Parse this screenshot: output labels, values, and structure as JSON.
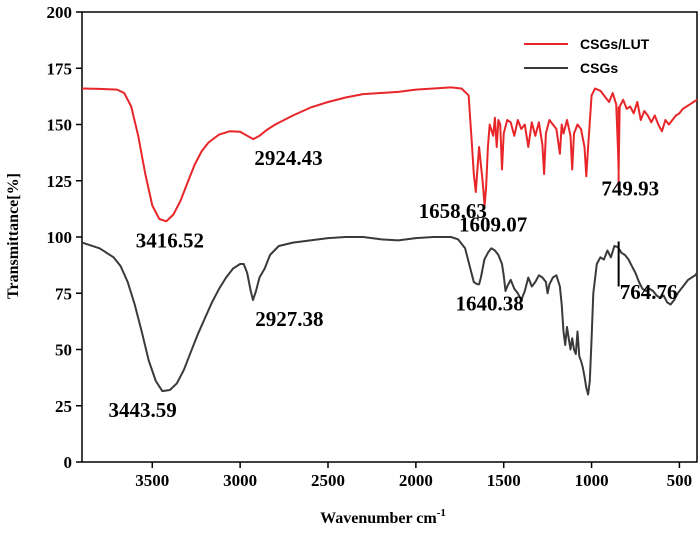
{
  "chart_data": {
    "type": "line",
    "xlabel": "Wavenumber cm",
    "xlabel_sup": "-1",
    "ylabel": "Transmittance[%]",
    "xlim": [
      3900,
      400
    ],
    "ylim": [
      0,
      200
    ],
    "x_ticks": [
      3500,
      3000,
      2500,
      2000,
      1500,
      1000,
      500
    ],
    "y_ticks": [
      0,
      25,
      50,
      75,
      100,
      125,
      150,
      175,
      200
    ],
    "legend_position": "top-right",
    "series": [
      {
        "name": "CSGs/LUT",
        "color": "#e8262a",
        "points": [
          [
            3900,
            166
          ],
          [
            3800,
            165.8
          ],
          [
            3700,
            165.5
          ],
          [
            3660,
            164
          ],
          [
            3620,
            158
          ],
          [
            3580,
            145
          ],
          [
            3540,
            128
          ],
          [
            3500,
            114
          ],
          [
            3460,
            108
          ],
          [
            3420,
            107
          ],
          [
            3380,
            110
          ],
          [
            3340,
            116
          ],
          [
            3300,
            124
          ],
          [
            3260,
            132
          ],
          [
            3220,
            138
          ],
          [
            3180,
            142
          ],
          [
            3120,
            145.5
          ],
          [
            3060,
            147
          ],
          [
            3000,
            146.8
          ],
          [
            2960,
            145
          ],
          [
            2925,
            143.5
          ],
          [
            2890,
            145
          ],
          [
            2850,
            147.5
          ],
          [
            2800,
            150
          ],
          [
            2700,
            154
          ],
          [
            2600,
            157.5
          ],
          [
            2500,
            160
          ],
          [
            2400,
            162
          ],
          [
            2300,
            163.5
          ],
          [
            2200,
            164
          ],
          [
            2100,
            164.5
          ],
          [
            2000,
            165.5
          ],
          [
            1900,
            166
          ],
          [
            1800,
            166.5
          ],
          [
            1740,
            166
          ],
          [
            1700,
            163
          ],
          [
            1680,
            140
          ],
          [
            1670,
            128
          ],
          [
            1659,
            120
          ],
          [
            1650,
            130
          ],
          [
            1640,
            140
          ],
          [
            1630,
            132
          ],
          [
            1620,
            125
          ],
          [
            1609,
            114
          ],
          [
            1600,
            122
          ],
          [
            1590,
            140
          ],
          [
            1580,
            150
          ],
          [
            1560,
            145
          ],
          [
            1550,
            153
          ],
          [
            1540,
            140
          ],
          [
            1530,
            152
          ],
          [
            1520,
            150
          ],
          [
            1510,
            130
          ],
          [
            1500,
            146
          ],
          [
            1480,
            152
          ],
          [
            1460,
            151
          ],
          [
            1440,
            145
          ],
          [
            1420,
            152
          ],
          [
            1400,
            148
          ],
          [
            1380,
            150
          ],
          [
            1360,
            140
          ],
          [
            1340,
            151
          ],
          [
            1320,
            145
          ],
          [
            1300,
            151
          ],
          [
            1280,
            141
          ],
          [
            1270,
            128
          ],
          [
            1260,
            146
          ],
          [
            1240,
            152
          ],
          [
            1220,
            150
          ],
          [
            1200,
            148
          ],
          [
            1180,
            137
          ],
          [
            1170,
            150
          ],
          [
            1160,
            146
          ],
          [
            1140,
            152
          ],
          [
            1120,
            145
          ],
          [
            1110,
            130
          ],
          [
            1100,
            146
          ],
          [
            1080,
            150
          ],
          [
            1060,
            148
          ],
          [
            1040,
            140
          ],
          [
            1030,
            127
          ],
          [
            1020,
            140
          ],
          [
            1000,
            163
          ],
          [
            980,
            166
          ],
          [
            950,
            165
          ],
          [
            920,
            162
          ],
          [
            900,
            160
          ],
          [
            880,
            164
          ],
          [
            860,
            159
          ],
          [
            850,
            140
          ],
          [
            846,
            130
          ],
          [
            840,
            158
          ],
          [
            820,
            161
          ],
          [
            800,
            157
          ],
          [
            780,
            158
          ],
          [
            760,
            155
          ],
          [
            740,
            160
          ],
          [
            720,
            152
          ],
          [
            700,
            156
          ],
          [
            680,
            154
          ],
          [
            660,
            151
          ],
          [
            640,
            154
          ],
          [
            620,
            150
          ],
          [
            600,
            147
          ],
          [
            580,
            152
          ],
          [
            560,
            150
          ],
          [
            540,
            152
          ],
          [
            520,
            154
          ],
          [
            500,
            155
          ],
          [
            480,
            157
          ],
          [
            460,
            158
          ],
          [
            440,
            159
          ],
          [
            420,
            160
          ],
          [
            400,
            161
          ]
        ]
      },
      {
        "name": "CSGs",
        "color": "#3a3a3a",
        "points": [
          [
            3900,
            97.5
          ],
          [
            3800,
            95
          ],
          [
            3720,
            91
          ],
          [
            3680,
            87
          ],
          [
            3640,
            80
          ],
          [
            3600,
            70
          ],
          [
            3560,
            58
          ],
          [
            3520,
            45
          ],
          [
            3480,
            36
          ],
          [
            3443,
            31.5
          ],
          [
            3400,
            32
          ],
          [
            3360,
            35
          ],
          [
            3320,
            41
          ],
          [
            3280,
            49
          ],
          [
            3240,
            57
          ],
          [
            3200,
            64
          ],
          [
            3160,
            71
          ],
          [
            3120,
            77
          ],
          [
            3080,
            82
          ],
          [
            3040,
            86
          ],
          [
            3000,
            88
          ],
          [
            2980,
            88
          ],
          [
            2960,
            84
          ],
          [
            2940,
            76
          ],
          [
            2927,
            72
          ],
          [
            2910,
            76
          ],
          [
            2890,
            82
          ],
          [
            2860,
            86
          ],
          [
            2830,
            92
          ],
          [
            2780,
            96
          ],
          [
            2700,
            97.5
          ],
          [
            2600,
            98.5
          ],
          [
            2500,
            99.5
          ],
          [
            2400,
            100
          ],
          [
            2300,
            100
          ],
          [
            2200,
            99
          ],
          [
            2100,
            98.5
          ],
          [
            2000,
            99.5
          ],
          [
            1900,
            100
          ],
          [
            1800,
            100
          ],
          [
            1760,
            99
          ],
          [
            1720,
            95
          ],
          [
            1690,
            86
          ],
          [
            1670,
            80
          ],
          [
            1650,
            79
          ],
          [
            1640,
            79
          ],
          [
            1630,
            82
          ],
          [
            1610,
            90
          ],
          [
            1590,
            93
          ],
          [
            1570,
            95
          ],
          [
            1550,
            94
          ],
          [
            1530,
            92
          ],
          [
            1510,
            88
          ],
          [
            1500,
            83
          ],
          [
            1490,
            76
          ],
          [
            1480,
            78
          ],
          [
            1460,
            81
          ],
          [
            1440,
            77
          ],
          [
            1420,
            75
          ],
          [
            1400,
            72
          ],
          [
            1380,
            76
          ],
          [
            1360,
            82
          ],
          [
            1340,
            78
          ],
          [
            1320,
            80
          ],
          [
            1300,
            83
          ],
          [
            1280,
            82
          ],
          [
            1260,
            80
          ],
          [
            1250,
            75
          ],
          [
            1240,
            79
          ],
          [
            1220,
            82
          ],
          [
            1200,
            83
          ],
          [
            1180,
            78
          ],
          [
            1170,
            70
          ],
          [
            1160,
            58
          ],
          [
            1150,
            52
          ],
          [
            1140,
            60
          ],
          [
            1130,
            55
          ],
          [
            1120,
            50
          ],
          [
            1110,
            55
          ],
          [
            1100,
            50
          ],
          [
            1090,
            48
          ],
          [
            1080,
            58
          ],
          [
            1070,
            47
          ],
          [
            1060,
            45
          ],
          [
            1050,
            42
          ],
          [
            1040,
            38
          ],
          [
            1030,
            33
          ],
          [
            1020,
            30
          ],
          [
            1010,
            36
          ],
          [
            1000,
            55
          ],
          [
            990,
            75
          ],
          [
            970,
            88
          ],
          [
            950,
            91
          ],
          [
            930,
            90
          ],
          [
            910,
            94
          ],
          [
            890,
            91
          ],
          [
            870,
            96
          ],
          [
            850,
            95.5
          ],
          [
            830,
            93
          ],
          [
            810,
            92
          ],
          [
            790,
            90
          ],
          [
            770,
            87
          ],
          [
            750,
            84
          ],
          [
            730,
            80
          ],
          [
            710,
            77
          ],
          [
            690,
            76
          ],
          [
            670,
            77
          ],
          [
            650,
            76
          ],
          [
            630,
            74
          ],
          [
            610,
            73
          ],
          [
            590,
            74
          ],
          [
            570,
            71
          ],
          [
            550,
            70
          ],
          [
            530,
            72
          ],
          [
            510,
            75
          ],
          [
            490,
            77
          ],
          [
            470,
            79
          ],
          [
            450,
            81
          ],
          [
            430,
            82
          ],
          [
            410,
            83
          ],
          [
            400,
            84
          ]
        ]
      }
    ],
    "annotations": [
      {
        "text": "3416.52",
        "x": 3400,
        "y": 107,
        "placement": "below"
      },
      {
        "text": "2924.43",
        "x": 2725,
        "y": 143.5,
        "placement": "below"
      },
      {
        "text": "1658.63",
        "x": 1790,
        "y": 120,
        "placement": "below"
      },
      {
        "text": "1609.07",
        "x": 1560,
        "y": 114,
        "placement": "below"
      },
      {
        "text": "749.93",
        "x": 780,
        "y": 130,
        "placement": "below"
      },
      {
        "text": "3443.59",
        "x": 3555,
        "y": 31.5,
        "placement": "below"
      },
      {
        "text": "2927.38",
        "x": 2720,
        "y": 72,
        "placement": "below"
      },
      {
        "text": "1640.38",
        "x": 1580,
        "y": 79,
        "placement": "below"
      },
      {
        "text": "764.76",
        "x": 675,
        "y": 84,
        "placement": "below"
      }
    ],
    "marker_lines": [
      {
        "x": 846,
        "y1": 122,
        "y2": 158,
        "color": "#e8262a"
      },
      {
        "x": 846,
        "y1": 78,
        "y2": 98,
        "color": "#000000"
      }
    ]
  }
}
